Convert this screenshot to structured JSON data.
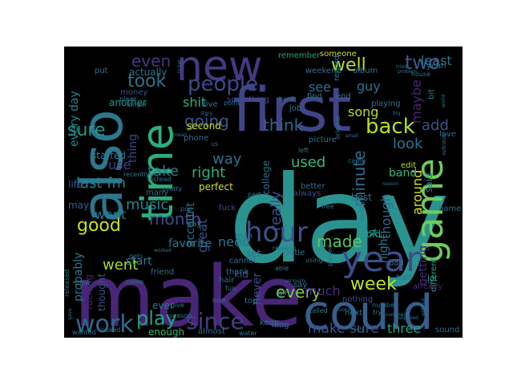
{
  "wordcloud": {
    "background": "#000000",
    "colormap": "viridis",
    "words": [
      {
        "text": "day",
        "color": "#2a9390"
      },
      {
        "text": "make",
        "color": "#482677"
      },
      {
        "text": "first",
        "color": "#414487"
      },
      {
        "text": "could",
        "color": "#355f8d"
      },
      {
        "text": "also",
        "color": "#2a788e"
      },
      {
        "text": "new",
        "color": "#443983"
      },
      {
        "text": "time",
        "color": "#29af7f"
      },
      {
        "text": "game",
        "color": "#6ccd5a"
      },
      {
        "text": "year",
        "color": "#3e4c8a"
      },
      {
        "text": "hour",
        "color": "#3b528b"
      },
      {
        "text": "work",
        "color": "#31688e"
      },
      {
        "text": "since",
        "color": "#433e85"
      },
      {
        "text": "play",
        "color": "#20a386"
      },
      {
        "text": "people",
        "color": "#3e4989"
      },
      {
        "text": "back",
        "color": "#b5de2b"
      },
      {
        "text": "week",
        "color": "#c2df23"
      },
      {
        "text": "well",
        "color": "#b8de29"
      },
      {
        "text": "two",
        "color": "#38588c"
      },
      {
        "text": "took",
        "color": "#2c738e"
      },
      {
        "text": "even",
        "color": "#453781"
      },
      {
        "text": "going",
        "color": "#3a548c"
      },
      {
        "text": "think",
        "color": "#31678e"
      },
      {
        "text": "sure",
        "color": "#1f9a8a"
      },
      {
        "text": "good",
        "color": "#c8e020"
      },
      {
        "text": "month",
        "color": "#3d4e8a"
      },
      {
        "text": "made",
        "color": "#56c667"
      },
      {
        "text": "minute",
        "color": "#2e6e8e"
      },
      {
        "text": "every",
        "color": "#7ad151"
      },
      {
        "text": "make sure",
        "color": "#3b528b"
      },
      {
        "text": "look",
        "color": "#2c728e"
      },
      {
        "text": "used",
        "color": "#35b779"
      },
      {
        "text": "really",
        "color": "#3e4a89"
      },
      {
        "text": "take",
        "color": "#2a788e"
      },
      {
        "text": "song",
        "color": "#b8de29"
      },
      {
        "text": "guy",
        "color": "#2d708e"
      },
      {
        "text": "add",
        "color": "#3b528b"
      },
      {
        "text": "music",
        "color": "#25848e"
      },
      {
        "text": "went",
        "color": "#a5db36"
      },
      {
        "text": "want",
        "color": "#2a788e"
      },
      {
        "text": "last fm",
        "color": "#277f8e"
      },
      {
        "text": "right",
        "color": "#29af7f"
      },
      {
        "text": "way",
        "color": "#2c728e"
      },
      {
        "text": "great",
        "color": "#3d4d8a"
      },
      {
        "text": "need",
        "color": "#2c728e"
      },
      {
        "text": "much",
        "color": "#472d7b"
      },
      {
        "text": "three",
        "color": "#20a386"
      },
      {
        "text": "maybe",
        "color": "#482475"
      },
      {
        "text": "around",
        "color": "#d8e219"
      },
      {
        "text": "though",
        "color": "#31688e"
      },
      {
        "text": "shit",
        "color": "#29af7f"
      },
      {
        "text": "see",
        "color": "#2c728e"
      },
      {
        "text": "least",
        "color": "#2c728e"
      },
      {
        "text": "every day",
        "color": "#25858e"
      },
      {
        "text": "thing",
        "color": "#3f4788"
      },
      {
        "text": "use",
        "color": "#433e85"
      },
      {
        "text": "started",
        "color": "#277f8e"
      },
      {
        "text": "probably",
        "color": "#2a788e"
      },
      {
        "text": "favorite",
        "color": "#2a788e"
      },
      {
        "text": "account",
        "color": "#2c728e"
      },
      {
        "text": "start",
        "color": "#287c8e"
      },
      {
        "text": "never",
        "color": "#3b528b"
      },
      {
        "text": "getting",
        "color": "#472d7b"
      },
      {
        "text": "band",
        "color": "#35b779"
      },
      {
        "text": "night",
        "color": "#2a788e"
      },
      {
        "text": "another",
        "color": "#1f988b"
      },
      {
        "text": "actually",
        "color": "#2d708e"
      },
      {
        "text": "thought",
        "color": "#3b528b"
      },
      {
        "text": "fucking",
        "color": "#482475"
      },
      {
        "text": "enough",
        "color": "#35b779"
      },
      {
        "text": "ever",
        "color": "#2a788e"
      },
      {
        "text": "may",
        "color": "#34618d"
      },
      {
        "text": "life",
        "color": "#3a548c"
      },
      {
        "text": "old",
        "color": "#20a386"
      },
      {
        "text": "post",
        "color": "#1f9a8a"
      },
      {
        "text": "said",
        "color": "#2a788e"
      },
      {
        "text": "best",
        "color": "#2c728e"
      },
      {
        "text": "perfect",
        "color": "#c8e020"
      },
      {
        "text": "fuck",
        "color": "#3e4a89"
      },
      {
        "text": "second",
        "color": "#c8e020"
      },
      {
        "text": "phone",
        "color": "#2d708e"
      },
      {
        "text": "kid",
        "color": "#3e4a89"
      },
      {
        "text": "set",
        "color": "#2c728e"
      },
      {
        "text": "almost",
        "color": "#2c728e"
      },
      {
        "text": "long",
        "color": "#2d708e"
      },
      {
        "text": "sound",
        "color": "#2d708e"
      },
      {
        "text": "edit",
        "color": "#b5de2b"
      },
      {
        "text": "lot",
        "color": "#20a386"
      },
      {
        "text": "name",
        "color": "#2c728e"
      },
      {
        "text": "different",
        "color": "#20a386"
      },
      {
        "text": "already",
        "color": "#482475"
      },
      {
        "text": "college",
        "color": "#2d708e"
      },
      {
        "text": "always",
        "color": "#3e4a89"
      },
      {
        "text": "better",
        "color": "#2c728e"
      },
      {
        "text": "someone",
        "color": "#c8e020"
      },
      {
        "text": "remember",
        "color": "#20a386"
      },
      {
        "text": "weekend",
        "color": "#2d708e"
      },
      {
        "text": "job",
        "color": "#2c728e"
      },
      {
        "text": "picture",
        "color": "#2d708e"
      },
      {
        "text": "record",
        "color": "#2a788e"
      },
      {
        "text": "playing",
        "color": "#2c728e"
      },
      {
        "text": "album",
        "color": "#2c728e"
      },
      {
        "text": "money",
        "color": "#3b528b"
      },
      {
        "text": "put",
        "color": "#2c728e"
      },
      {
        "text": "something",
        "color": "#3e4a89"
      },
      {
        "text": "many",
        "color": "#2c728e"
      },
      {
        "text": "cannot",
        "color": "#2d708e"
      },
      {
        "text": "man",
        "color": "#2c728e"
      },
      {
        "text": "thank",
        "color": "#2d708e"
      },
      {
        "text": "little",
        "color": "#2a788e"
      },
      {
        "text": "top",
        "color": "#2c728e"
      },
      {
        "text": "girl",
        "color": "#2c728e"
      },
      {
        "text": "keep",
        "color": "#2a788e"
      },
      {
        "text": "next",
        "color": "#2d708e"
      },
      {
        "text": "nothing",
        "color": "#3e4a89"
      },
      {
        "text": "number",
        "color": "#2c728e"
      },
      {
        "text": "bad",
        "color": "#2c728e"
      },
      {
        "text": "half",
        "color": "#2c728e"
      },
      {
        "text": "yeah",
        "color": "#2c728e"
      },
      {
        "text": "house",
        "color": "#2c728e"
      },
      {
        "text": "love",
        "color": "#2c728e"
      },
      {
        "text": "end",
        "color": "#2c728e"
      },
      {
        "text": "free",
        "color": "#2c728e"
      },
      {
        "text": "called",
        "color": "#2a788e"
      },
      {
        "text": "say",
        "color": "#2a788e"
      },
      {
        "text": "nice",
        "color": "#2a788e"
      },
      {
        "text": "fun",
        "color": "#2d708e"
      },
      {
        "text": "hair",
        "color": "#2d708e"
      },
      {
        "text": "us",
        "color": "#2d708e"
      },
      {
        "text": "pay",
        "color": "#2d708e"
      },
      {
        "text": "pop",
        "color": "#2d708e"
      },
      {
        "text": "friend",
        "color": "#2d708e"
      },
      {
        "text": "gets",
        "color": "#2d708e"
      },
      {
        "text": "released",
        "color": "#2a788e"
      },
      {
        "text": "wanted",
        "color": "#2a788e"
      },
      {
        "text": "looked",
        "color": "#2a788e"
      },
      {
        "text": "water",
        "color": "#2a788e"
      },
      {
        "text": "season",
        "color": "#2a788e"
      },
      {
        "text": "able",
        "color": "#2a788e"
      },
      {
        "text": "release",
        "color": "#2a788e"
      },
      {
        "text": "using",
        "color": "#2a788e"
      },
      {
        "text": "live",
        "color": "#2a788e"
      },
      {
        "text": "point",
        "color": "#2a788e"
      },
      {
        "text": "find",
        "color": "#2a788e"
      },
      {
        "text": "part",
        "color": "#2a788e"
      },
      {
        "text": "pretty",
        "color": "#2a788e"
      },
      {
        "text": "instead",
        "color": "#2a788e"
      },
      {
        "text": "recently",
        "color": "#2a788e"
      },
      {
        "text": "place",
        "color": "#2a788e"
      },
      {
        "text": "longer",
        "color": "#2a788e"
      },
      {
        "text": "story",
        "color": "#2a788e"
      },
      {
        "text": "hard",
        "color": "#2a788e"
      },
      {
        "text": "seriously",
        "color": "#2a788e"
      },
      {
        "text": "definitely",
        "color": "#2a788e"
      },
      {
        "text": "original",
        "color": "#2a788e"
      },
      {
        "text": "small",
        "color": "#2a788e"
      },
      {
        "text": "ticket",
        "color": "#2a788e"
      },
      {
        "text": "problem",
        "color": "#2a788e"
      },
      {
        "text": "comment",
        "color": "#2a788e"
      },
      {
        "text": "tried",
        "color": "#2a788e"
      },
      {
        "text": "worked",
        "color": "#2a788e"
      },
      {
        "text": "surprised",
        "color": "#2a788e"
      },
      {
        "text": "might",
        "color": "#2a788e"
      },
      {
        "text": "without",
        "color": "#2a788e"
      },
      {
        "text": "grade",
        "color": "#2a788e"
      },
      {
        "text": "try",
        "color": "#2a788e"
      },
      {
        "text": "big",
        "color": "#2a788e"
      },
      {
        "text": "bit",
        "color": "#2a788e"
      },
      {
        "text": "left",
        "color": "#2a788e"
      },
      {
        "text": "came",
        "color": "#2a788e"
      },
      {
        "text": "mean",
        "color": "#2a788e"
      },
      {
        "text": "give",
        "color": "#2a788e"
      },
      {
        "text": "looking",
        "color": "#2a788e"
      },
      {
        "text": "played",
        "color": "#2a788e"
      },
      {
        "text": "come",
        "color": "#2a788e"
      },
      {
        "text": "show",
        "color": "#2a788e"
      },
      {
        "text": "gave",
        "color": "#2a788e"
      },
      {
        "text": "world",
        "color": "#2a788e"
      },
      {
        "text": "working",
        "color": "#2a788e"
      },
      {
        "text": "reason",
        "color": "#2a788e"
      }
    ]
  }
}
